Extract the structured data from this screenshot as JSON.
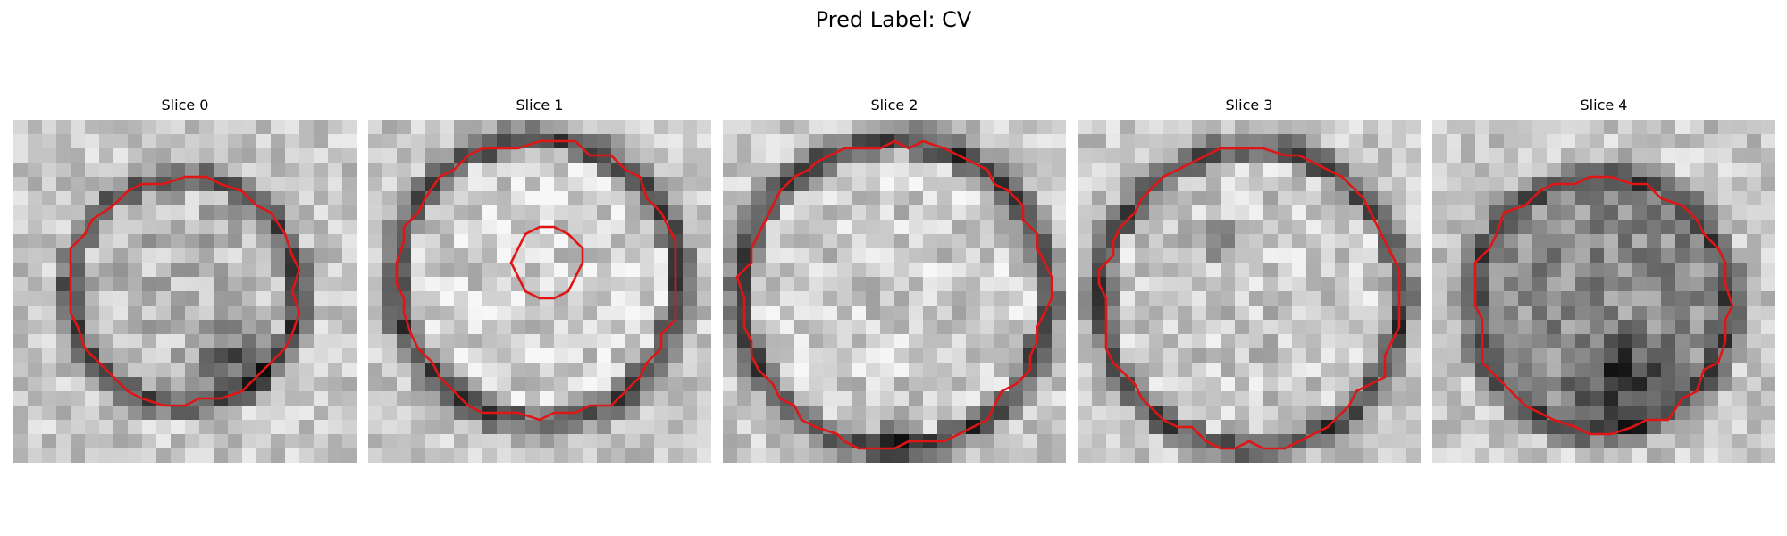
{
  "figure": {
    "title": "Pred Label: CV"
  },
  "panels": [
    {
      "label": "Slice 0"
    },
    {
      "label": "Slice 1"
    },
    {
      "label": "Slice 2"
    },
    {
      "label": "Slice 3"
    },
    {
      "label": "Slice 4"
    }
  ],
  "contour_color": "#e01515"
}
